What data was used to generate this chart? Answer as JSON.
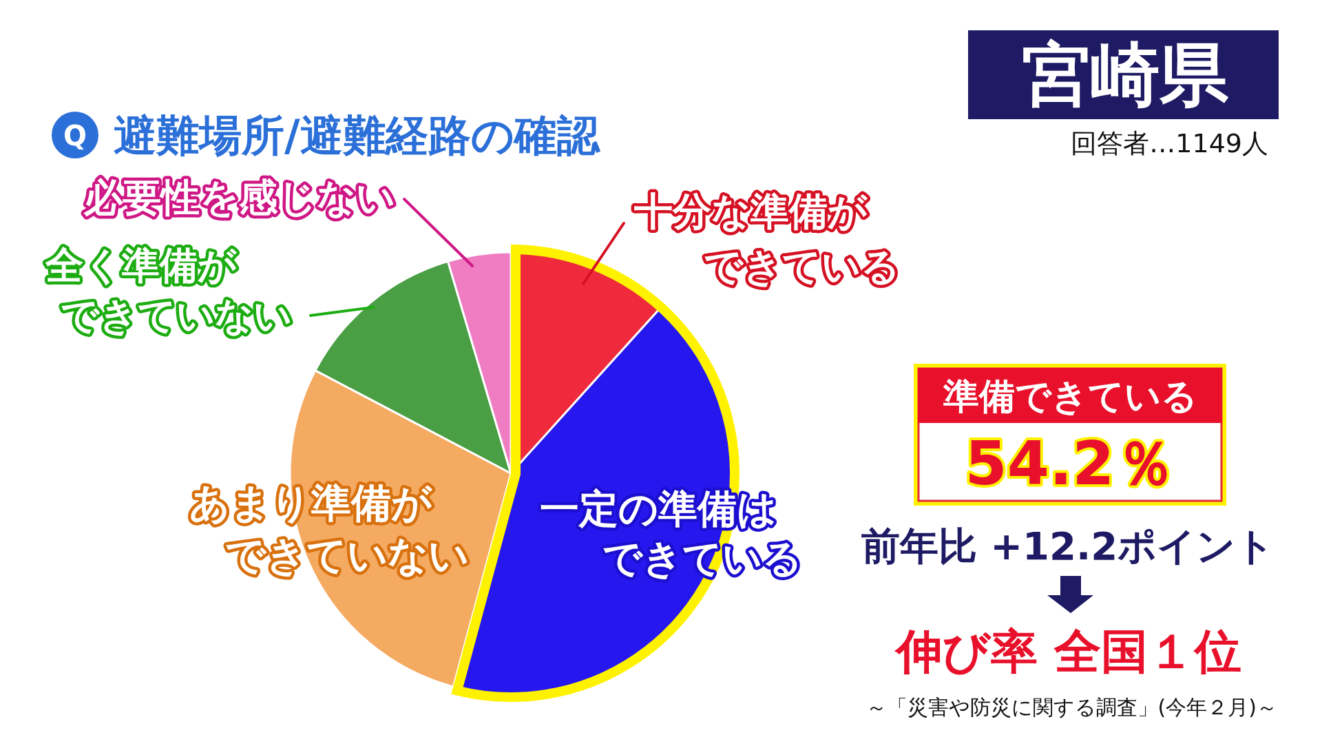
{
  "chart_data": {
    "type": "pie",
    "title": "避難場所/避難経路の確認",
    "subtitle": "宮崎県",
    "categories": [
      "十分な準備ができている",
      "一定の準備はできている",
      "あまり準備ができていない",
      "全く準備ができていない",
      "必要性を感じない"
    ],
    "values": [
      11.7,
      42.5,
      28.5,
      12.7,
      4.6
    ],
    "colors": [
      "#ee2a3c",
      "#2517ee",
      "#f5aa62",
      "#4a9e44",
      "#f07dc2"
    ],
    "annotations": [
      "Q",
      "回答者…1149人",
      "準備できている",
      "54.2％",
      "前年比 +12.2ポイント",
      "伸び率 全国１位",
      "～「災害や防災に関する調査」(今年２月)～"
    ]
  }
}
